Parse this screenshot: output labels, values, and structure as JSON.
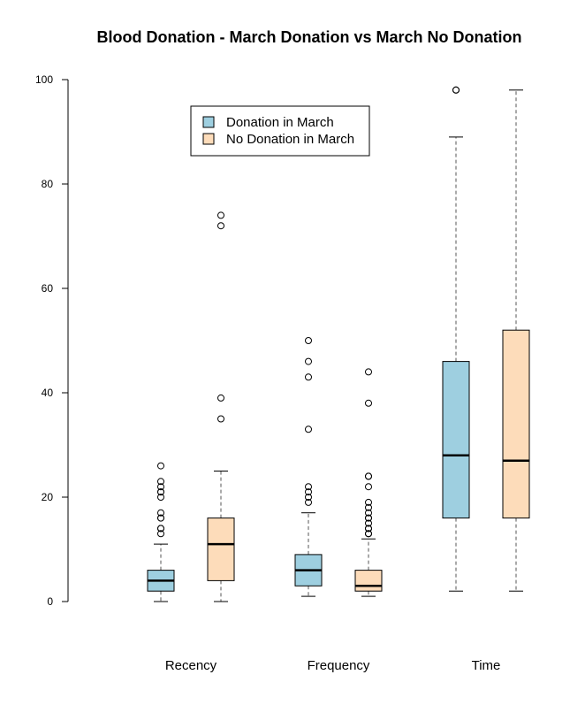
{
  "chart_data": {
    "type": "boxplot",
    "title": "Blood Donation - March Donation vs March No Donation",
    "xlabel": "",
    "ylabel": "",
    "ylim": [
      0,
      100
    ],
    "yticks": [
      0,
      20,
      40,
      60,
      80,
      100
    ],
    "grid": false,
    "legend_position": "top-center",
    "categories": [
      "Recency",
      "Frequency",
      "Time"
    ],
    "series": [
      {
        "name": "Donation in March",
        "color": "#9ecfe0",
        "boxes": [
          {
            "category": "Recency",
            "whisker_low": 0,
            "q1": 2,
            "median": 4,
            "q3": 6,
            "whisker_high": 11,
            "outliers": [
              13,
              14,
              14,
              16,
              16,
              17,
              20,
              21,
              21,
              22,
              23,
              26
            ]
          },
          {
            "category": "Frequency",
            "whisker_low": 1,
            "q1": 3,
            "median": 6,
            "q3": 9,
            "whisker_high": 17,
            "outliers": [
              19,
              20,
              21,
              22,
              33,
              43,
              46,
              50
            ]
          },
          {
            "category": "Time",
            "whisker_low": 2,
            "q1": 16,
            "median": 28,
            "q3": 46,
            "whisker_high": 89,
            "outliers": [
              98,
              98
            ]
          }
        ]
      },
      {
        "name": "No Donation in March",
        "color": "#fddcba",
        "boxes": [
          {
            "category": "Recency",
            "whisker_low": 0,
            "q1": 4,
            "median": 11,
            "q3": 16,
            "whisker_high": 25,
            "outliers": [
              35,
              39,
              72,
              74
            ]
          },
          {
            "category": "Frequency",
            "whisker_low": 1,
            "q1": 2,
            "median": 3,
            "q3": 6,
            "whisker_high": 12,
            "outliers": [
              13,
              13,
              14,
              14,
              15,
              16,
              16,
              17,
              18,
              19,
              22,
              24,
              24,
              38,
              44
            ]
          },
          {
            "category": "Time",
            "whisker_low": 2,
            "q1": 16,
            "median": 27,
            "q3": 52,
            "whisker_high": 98,
            "outliers": []
          }
        ]
      }
    ]
  }
}
